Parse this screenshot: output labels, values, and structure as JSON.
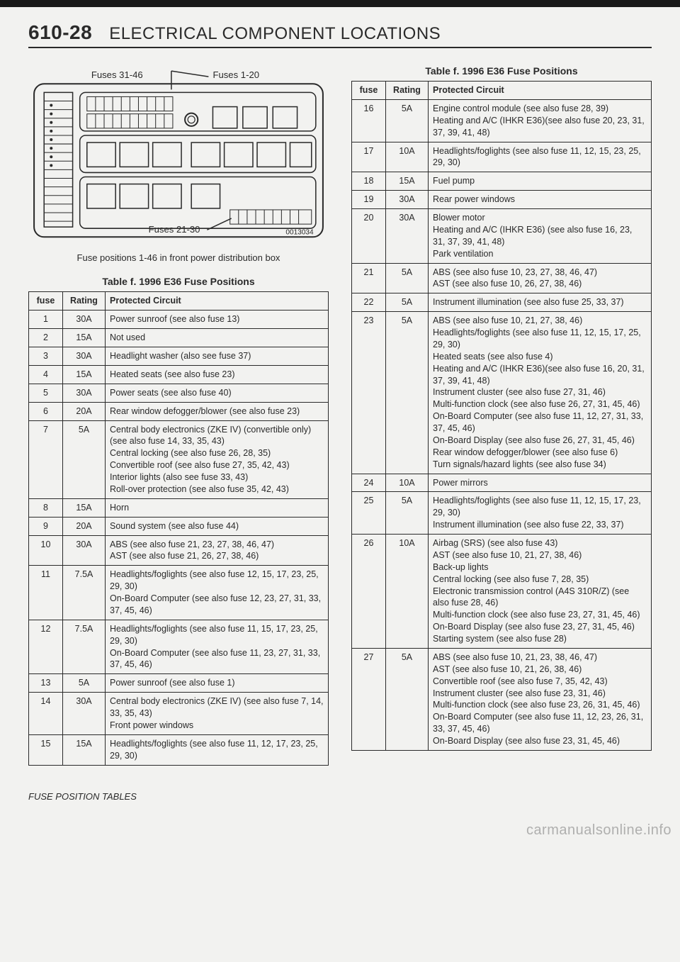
{
  "page_number": "610-28",
  "page_title": "ELECTRICAL COMPONENT LOCATIONS",
  "diagram": {
    "labels": {
      "top_left": "Fuses 31-46",
      "top_right": "Fuses 1-20",
      "bottom": "Fuses 21-30",
      "part_no": "0013034"
    },
    "caption": "Fuse positions 1-46 in front power distribution box"
  },
  "table_title": "Table f. 1996 E36 Fuse Positions",
  "headers": {
    "fuse": "fuse",
    "rating": "Rating",
    "circuit": "Protected Circuit"
  },
  "left_rows": [
    {
      "fuse": "1",
      "rating": "30A",
      "circuit": "Power sunroof (see also fuse 13)"
    },
    {
      "fuse": "2",
      "rating": "15A",
      "circuit": "Not used"
    },
    {
      "fuse": "3",
      "rating": "30A",
      "circuit": "Headlight washer (also see fuse 37)"
    },
    {
      "fuse": "4",
      "rating": "15A",
      "circuit": "Heated seats (see also fuse 23)"
    },
    {
      "fuse": "5",
      "rating": "30A",
      "circuit": "Power seats (see also fuse 40)"
    },
    {
      "fuse": "6",
      "rating": "20A",
      "circuit": "Rear window defogger/blower (see also fuse 23)"
    },
    {
      "fuse": "7",
      "rating": "5A",
      "circuit": "Central body electronics (ZKE IV) (convertible only) (see also fuse 14, 33, 35, 43)\nCentral locking (see also fuse 26, 28, 35)\nConvertible roof (see also fuse 27, 35, 42, 43)\nInterior lights (also see fuse 33, 43)\nRoll-over protection (see also fuse 35, 42, 43)"
    },
    {
      "fuse": "8",
      "rating": "15A",
      "circuit": "Horn"
    },
    {
      "fuse": "9",
      "rating": "20A",
      "circuit": "Sound system (see also fuse 44)"
    },
    {
      "fuse": "10",
      "rating": "30A",
      "circuit": "ABS (see also fuse 21, 23, 27, 38, 46, 47)\nAST (see also fuse 21, 26, 27, 38, 46)"
    },
    {
      "fuse": "11",
      "rating": "7.5A",
      "circuit": "Headlights/foglights (see also fuse 12, 15, 17, 23, 25, 29, 30)\nOn-Board Computer (see also fuse 12, 23, 27, 31, 33, 37, 45, 46)"
    },
    {
      "fuse": "12",
      "rating": "7.5A",
      "circuit": "Headlights/foglights (see also fuse 11, 15, 17, 23, 25, 29, 30)\nOn-Board Computer (see also fuse 11, 23, 27, 31, 33, 37, 45, 46)"
    },
    {
      "fuse": "13",
      "rating": "5A",
      "circuit": "Power sunroof (see also fuse 1)"
    },
    {
      "fuse": "14",
      "rating": "30A",
      "circuit": "Central body electronics (ZKE IV) (see also fuse 7, 14, 33, 35, 43)\nFront power windows"
    },
    {
      "fuse": "15",
      "rating": "15A",
      "circuit": "Headlights/foglights (see also fuse 11, 12, 17, 23, 25, 29, 30)"
    }
  ],
  "right_rows": [
    {
      "fuse": "16",
      "rating": "5A",
      "circuit": "Engine control module (see also fuse 28, 39)\nHeating and A/C (IHKR E36)(see also fuse 20, 23, 31, 37, 39, 41, 48)"
    },
    {
      "fuse": "17",
      "rating": "10A",
      "circuit": "Headlights/foglights (see also fuse 11, 12, 15, 23, 25, 29, 30)"
    },
    {
      "fuse": "18",
      "rating": "15A",
      "circuit": "Fuel pump"
    },
    {
      "fuse": "19",
      "rating": "30A",
      "circuit": "Rear power windows"
    },
    {
      "fuse": "20",
      "rating": "30A",
      "circuit": "Blower motor\nHeating and A/C (IHKR E36) (see also fuse 16, 23, 31, 37, 39, 41, 48)\nPark ventilation"
    },
    {
      "fuse": "21",
      "rating": "5A",
      "circuit": "ABS (see also fuse 10, 23, 27, 38, 46, 47)\nAST (see also fuse 10, 26, 27, 38, 46)"
    },
    {
      "fuse": "22",
      "rating": "5A",
      "circuit": "Instrument illumination (see also fuse 25, 33, 37)"
    },
    {
      "fuse": "23",
      "rating": "5A",
      "circuit": "ABS (see also fuse 10, 21, 27, 38, 46)\nHeadlights/foglights (see also fuse 11, 12, 15, 17, 25, 29, 30)\nHeated seats (see also fuse 4)\nHeating and A/C (IHKR E36)(see also fuse 16, 20, 31, 37, 39, 41, 48)\nInstrument cluster (see also fuse 27, 31, 46)\nMulti-function clock (see also fuse 26, 27, 31, 45, 46)\nOn-Board Computer (see also fuse 11, 12, 27, 31, 33, 37, 45, 46)\nOn-Board Display (see also fuse 26, 27, 31, 45, 46)\nRear window defogger/blower (see also fuse 6)\nTurn signals/hazard lights (see also fuse 34)"
    },
    {
      "fuse": "24",
      "rating": "10A",
      "circuit": "Power mirrors"
    },
    {
      "fuse": "25",
      "rating": "5A",
      "circuit": "Headlights/foglights (see also fuse 11, 12, 15, 17, 23, 29, 30)\nInstrument illumination (see also fuse 22, 33, 37)"
    },
    {
      "fuse": "26",
      "rating": "10A",
      "circuit": "Airbag (SRS) (see also fuse 43)\nAST (see also fuse 10, 21, 27, 38, 46)\nBack-up lights\nCentral locking (see also fuse 7, 28, 35)\nElectronic transmission control (A4S 310R/Z) (see also fuse 28, 46)\nMulti-function clock (see also fuse 23, 27, 31, 45, 46)\nOn-Board Display (see also fuse 23, 27, 31, 45, 46)\nStarting system (see also fuse 28)"
    },
    {
      "fuse": "27",
      "rating": "5A",
      "circuit": "ABS (see also fuse 10, 21, 23, 38, 46, 47)\nAST (see also fuse 10, 21, 26, 38, 46)\nConvertible roof (see also fuse 7, 35, 42, 43)\nInstrument cluster (see also fuse 23, 31, 46)\nMulti-function clock (see also fuse 23, 26, 31, 45, 46)\nOn-Board Computer (see also fuse 11, 12, 23, 26, 31, 33, 37, 45, 46)\nOn-Board Display (see also fuse 23, 31, 45, 46)"
    }
  ],
  "footer": "FUSE POSITION TABLES",
  "watermark": "carmanualsonline.info",
  "colors": {
    "text": "#2a2a2a",
    "bg": "#f2f2f0",
    "border": "#2a2a2a"
  }
}
